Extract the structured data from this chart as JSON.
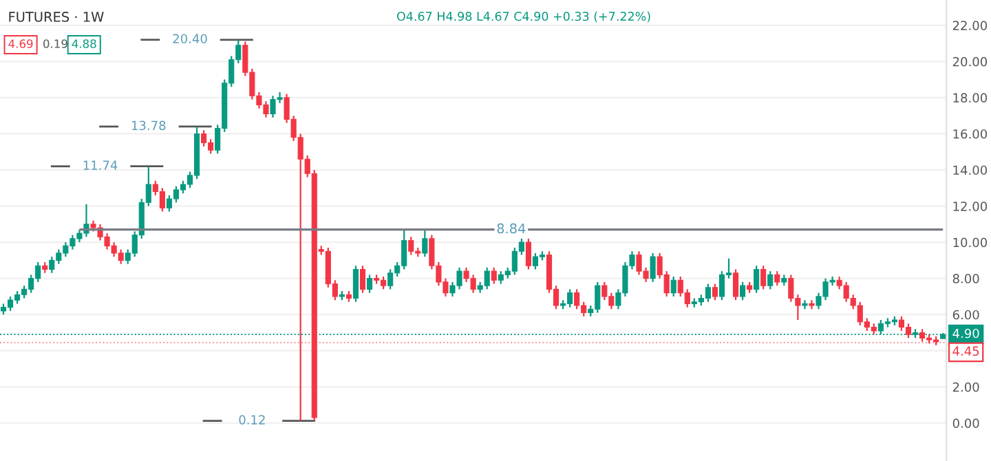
{
  "chart_data": {
    "type": "candlestick",
    "title": "FUTURES · 1W",
    "subtitle": "O4.67 H4.98 L4.67 C4.90 +0.33 (+7.22%)",
    "annotations": [
      "4.69",
      "0.19",
      "4.88",
      "20.40",
      "13.78",
      "11.74",
      "0.12",
      "8.84"
    ],
    "colors": [
      "#089981",
      "#089981",
      "#089981",
      "#089981",
      "#089981",
      "#089981",
      "#f23645",
      "#089981",
      "#089981",
      "#089981",
      "#089981",
      "#089981",
      "#089981",
      "#f23645",
      "#f23645",
      "#f23645",
      "#f23645",
      "#f23645",
      "#089981",
      "#089981",
      "#089981",
      "#089981",
      "#f23645",
      "#f23645",
      "#089981",
      "#089981",
      "#089981",
      "#089981",
      "#089981",
      "#f23645",
      "#f23645",
      "#089981",
      "#089981",
      "#089981",
      "#089981",
      "#f23645",
      "#f23645",
      "#f23645",
      "#f23645",
      "#089981",
      "#089981",
      "#f23645",
      "#f23645",
      "#f23645",
      "#f23645",
      "#f23645",
      "#f23645",
      "#f23645",
      "#f23645",
      "#089981",
      "#f23645",
      "#089981",
      "#f23645",
      "#089981",
      "#f23645",
      "#f23645",
      "#089981",
      "#089981",
      "#089981",
      "#f23645",
      "#f23645",
      "#089981",
      "#f23645",
      "#f23645",
      "#f23645",
      "#089981",
      "#089981",
      "#f23645",
      "#f23645",
      "#089981",
      "#089981",
      "#f23645",
      "#089981",
      "#089981",
      "#089981",
      "#089981",
      "#f23645",
      "#089981",
      "#089981",
      "#f23645",
      "#f23645",
      "#089981",
      "#089981",
      "#f23645",
      "#f23645",
      "#089981",
      "#089981",
      "#f23645",
      "#f23645",
      "#089981",
      "#089981",
      "#089981",
      "#f23645",
      "#f23645",
      "#089981",
      "#f23645",
      "#f23645",
      "#089981",
      "#f23645",
      "#f23645",
      "#089981",
      "#089981",
      "#089981",
      "#f23645",
      "#089981",
      "#089981",
      "#f23645",
      "#089981",
      "#f23645",
      "#089981",
      "#f23645",
      "#089981",
      "#f23645",
      "#089981",
      "#f23645",
      "#f23645",
      "#089981",
      "#f23645",
      "#089981",
      "#089981",
      "#089981",
      "#f23645",
      "#f23645",
      "#f23645",
      "#f23645",
      "#f23645",
      "#f23645",
      "#089981",
      "#089981",
      "#089981",
      "#f23645",
      "#f23645",
      "#089981",
      "#f23645",
      "#f23645",
      "#f23645",
      "#089981"
    ],
    "categories": [
      null,
      null,
      null,
      null,
      null,
      null,
      null,
      null,
      null,
      null,
      null,
      null,
      null,
      null,
      null,
      null,
      null,
      null,
      null,
      null,
      null,
      null,
      null,
      null,
      null,
      null,
      null,
      null,
      null,
      null,
      null,
      null,
      null,
      null,
      null,
      null,
      null,
      null,
      null,
      null,
      null,
      null,
      null,
      null,
      null,
      null,
      null,
      null,
      null,
      null,
      null,
      null,
      null,
      null,
      null,
      null,
      null,
      null,
      null,
      null,
      null,
      null,
      null,
      null,
      null,
      null,
      null,
      null,
      null,
      null,
      null,
      null,
      null,
      null,
      null,
      null,
      null,
      null,
      null,
      null,
      null,
      null,
      null,
      null,
      null,
      null,
      null,
      null,
      null,
      null,
      null,
      null,
      null,
      null,
      null,
      null,
      null,
      null,
      null,
      null,
      null,
      null,
      null,
      null,
      null,
      null,
      null,
      null,
      null,
      null,
      null,
      null,
      null,
      null,
      null,
      null,
      null,
      null,
      null,
      null,
      null,
      null,
      null,
      null,
      null,
      null,
      null,
      null,
      null,
      null,
      null,
      null,
      null,
      null,
      null,
      null,
      null
    ],
    "ohlc": [
      [
        6.2,
        6.6,
        6.0,
        6.4
      ],
      [
        6.4,
        7.0,
        6.2,
        6.8
      ],
      [
        6.8,
        7.3,
        6.6,
        7.1
      ],
      [
        7.1,
        7.6,
        6.9,
        7.4
      ],
      [
        7.4,
        8.2,
        7.2,
        8.0
      ],
      [
        8.0,
        8.9,
        7.8,
        8.7
      ],
      [
        8.7,
        8.9,
        8.3,
        8.5
      ],
      [
        8.5,
        9.2,
        8.3,
        9.0
      ],
      [
        9.0,
        9.6,
        8.8,
        9.4
      ],
      [
        9.4,
        10.0,
        9.2,
        9.8
      ],
      [
        9.8,
        10.4,
        9.6,
        10.2
      ],
      [
        10.2,
        10.7,
        10.0,
        10.5
      ],
      [
        10.5,
        12.1,
        10.3,
        11.0
      ],
      [
        11.0,
        11.2,
        10.6,
        10.8
      ],
      [
        10.8,
        11.0,
        10.1,
        10.3
      ],
      [
        10.3,
        10.5,
        9.6,
        9.8
      ],
      [
        9.8,
        10.0,
        9.2,
        9.4
      ],
      [
        9.4,
        9.6,
        8.8,
        9.0
      ],
      [
        9.0,
        9.6,
        8.8,
        9.4
      ],
      [
        9.4,
        10.6,
        9.2,
        10.4
      ],
      [
        10.4,
        12.4,
        10.2,
        12.2
      ],
      [
        12.2,
        14.2,
        12.0,
        13.2
      ],
      [
        13.2,
        13.4,
        12.6,
        12.8
      ],
      [
        12.8,
        13.0,
        11.7,
        11.9
      ],
      [
        11.9,
        12.6,
        11.7,
        12.4
      ],
      [
        12.4,
        13.1,
        12.2,
        12.9
      ],
      [
        12.9,
        13.4,
        12.7,
        13.2
      ],
      [
        13.2,
        13.9,
        13.0,
        13.7
      ],
      [
        13.7,
        16.4,
        13.5,
        16.0
      ],
      [
        16.0,
        16.2,
        15.3,
        15.5
      ],
      [
        15.5,
        15.7,
        14.9,
        15.1
      ],
      [
        15.1,
        16.5,
        14.9,
        16.3
      ],
      [
        16.3,
        19.0,
        16.1,
        18.8
      ],
      [
        18.8,
        20.3,
        18.6,
        20.1
      ],
      [
        20.1,
        21.2,
        19.9,
        20.9
      ],
      [
        20.9,
        21.1,
        19.2,
        19.4
      ],
      [
        19.4,
        19.6,
        17.9,
        18.1
      ],
      [
        18.1,
        18.3,
        17.4,
        17.6
      ],
      [
        17.6,
        17.8,
        16.9,
        17.1
      ],
      [
        17.1,
        18.1,
        16.9,
        17.9
      ],
      [
        17.9,
        18.3,
        17.7,
        18.0
      ],
      [
        18.0,
        18.2,
        16.6,
        16.8
      ],
      [
        16.8,
        17.0,
        15.6,
        15.8
      ],
      [
        15.8,
        16.0,
        0.12,
        14.6
      ],
      [
        14.6,
        14.8,
        13.6,
        13.8
      ],
      [
        13.8,
        14.0,
        0.12,
        0.3
      ],
      [
        9.6,
        9.8,
        9.3,
        9.5
      ],
      [
        9.5,
        9.7,
        7.5,
        7.7
      ],
      [
        7.7,
        7.9,
        6.8,
        7.0
      ],
      [
        7.0,
        7.3,
        6.8,
        7.1
      ],
      [
        7.1,
        7.3,
        6.7,
        6.9
      ],
      [
        6.9,
        8.7,
        6.7,
        8.5
      ],
      [
        8.5,
        8.7,
        7.2,
        7.4
      ],
      [
        7.4,
        8.2,
        7.2,
        8.0
      ],
      [
        8.0,
        8.2,
        7.7,
        7.9
      ],
      [
        7.9,
        8.1,
        7.4,
        7.6
      ],
      [
        7.6,
        8.5,
        7.4,
        8.3
      ],
      [
        8.3,
        8.9,
        8.1,
        8.7
      ],
      [
        8.7,
        10.7,
        8.5,
        10.1
      ],
      [
        10.1,
        10.3,
        9.3,
        9.5
      ],
      [
        9.5,
        9.7,
        9.2,
        9.4
      ],
      [
        9.4,
        10.7,
        9.2,
        10.2
      ],
      [
        10.2,
        10.4,
        8.5,
        8.7
      ],
      [
        8.7,
        8.9,
        7.6,
        7.8
      ],
      [
        7.8,
        8.0,
        7.0,
        7.2
      ],
      [
        7.2,
        7.8,
        7.0,
        7.6
      ],
      [
        7.6,
        8.6,
        7.4,
        8.4
      ],
      [
        8.4,
        8.6,
        7.8,
        8.0
      ],
      [
        8.0,
        8.2,
        7.2,
        7.4
      ],
      [
        7.4,
        7.8,
        7.2,
        7.6
      ],
      [
        7.6,
        8.6,
        7.4,
        8.4
      ],
      [
        8.4,
        8.6,
        7.7,
        7.9
      ],
      [
        7.9,
        8.4,
        7.7,
        8.2
      ],
      [
        8.2,
        8.6,
        8.0,
        8.4
      ],
      [
        8.4,
        9.7,
        8.2,
        9.5
      ],
      [
        9.5,
        10.2,
        9.3,
        10.0
      ],
      [
        10.0,
        10.2,
        8.5,
        8.7
      ],
      [
        8.7,
        9.4,
        8.5,
        9.2
      ],
      [
        9.2,
        9.5,
        9.0,
        9.3
      ],
      [
        9.3,
        9.5,
        7.2,
        7.4
      ],
      [
        7.4,
        7.6,
        6.3,
        6.5
      ],
      [
        6.5,
        6.8,
        6.3,
        6.6
      ],
      [
        6.6,
        7.4,
        6.4,
        7.2
      ],
      [
        7.2,
        7.4,
        6.3,
        6.5
      ],
      [
        6.5,
        6.7,
        5.9,
        6.1
      ],
      [
        6.1,
        6.5,
        5.9,
        6.3
      ],
      [
        6.3,
        7.8,
        6.1,
        7.6
      ],
      [
        7.6,
        7.8,
        6.8,
        7.0
      ],
      [
        7.0,
        7.2,
        6.3,
        6.5
      ],
      [
        6.5,
        7.4,
        6.3,
        7.2
      ],
      [
        7.2,
        8.9,
        7.0,
        8.7
      ],
      [
        8.7,
        9.5,
        8.5,
        9.3
      ],
      [
        9.3,
        9.5,
        8.2,
        8.4
      ],
      [
        8.4,
        8.6,
        7.8,
        8.0
      ],
      [
        8.0,
        9.4,
        7.8,
        9.2
      ],
      [
        9.2,
        9.4,
        8.0,
        8.2
      ],
      [
        8.2,
        8.4,
        7.0,
        7.2
      ],
      [
        7.2,
        8.1,
        7.0,
        7.9
      ],
      [
        7.9,
        8.1,
        7.0,
        7.2
      ],
      [
        7.2,
        7.4,
        6.4,
        6.6
      ],
      [
        6.6,
        6.9,
        6.4,
        6.7
      ],
      [
        6.7,
        7.1,
        6.5,
        6.9
      ],
      [
        6.9,
        7.7,
        6.7,
        7.5
      ],
      [
        7.5,
        7.7,
        6.8,
        7.0
      ],
      [
        7.0,
        8.4,
        6.8,
        8.2
      ],
      [
        8.2,
        9.1,
        8.0,
        8.3
      ],
      [
        8.3,
        8.5,
        6.8,
        7.0
      ],
      [
        7.0,
        7.8,
        6.8,
        7.6
      ],
      [
        7.6,
        7.8,
        7.2,
        7.4
      ],
      [
        7.4,
        8.7,
        7.2,
        8.5
      ],
      [
        8.5,
        8.7,
        7.4,
        7.6
      ],
      [
        7.6,
        8.4,
        7.4,
        8.2
      ],
      [
        8.2,
        8.4,
        7.6,
        7.8
      ],
      [
        7.8,
        8.2,
        7.6,
        8.0
      ],
      [
        8.0,
        8.2,
        6.7,
        6.9
      ],
      [
        6.9,
        7.1,
        5.7,
        6.5
      ],
      [
        6.5,
        6.8,
        6.3,
        6.6
      ],
      [
        6.6,
        6.8,
        6.3,
        6.5
      ],
      [
        6.5,
        7.2,
        6.3,
        7.0
      ],
      [
        7.0,
        8.0,
        6.8,
        7.8
      ],
      [
        7.8,
        8.1,
        7.6,
        7.9
      ],
      [
        7.9,
        8.1,
        7.4,
        7.6
      ],
      [
        7.6,
        7.8,
        6.7,
        6.9
      ],
      [
        6.9,
        7.1,
        6.3,
        6.5
      ],
      [
        6.5,
        6.7,
        5.4,
        5.6
      ],
      [
        5.6,
        5.8,
        5.1,
        5.3
      ],
      [
        5.3,
        5.5,
        4.9,
        5.1
      ],
      [
        5.1,
        5.7,
        4.9,
        5.5
      ],
      [
        5.5,
        5.8,
        5.3,
        5.6
      ],
      [
        5.6,
        5.9,
        5.4,
        5.7
      ],
      [
        5.7,
        5.9,
        5.1,
        5.3
      ],
      [
        5.3,
        5.5,
        4.7,
        4.9
      ],
      [
        4.9,
        5.2,
        4.7,
        5.0
      ],
      [
        5.0,
        5.2,
        4.5,
        4.7
      ],
      [
        4.7,
        4.9,
        4.4,
        4.6
      ],
      [
        4.6,
        4.8,
        4.3,
        4.5
      ],
      [
        4.67,
        4.98,
        4.67,
        4.9
      ]
    ],
    "ylim": [
      -2.1,
      23.4
    ],
    "yticks": [
      {
        "value": 0,
        "label": "0.00"
      },
      {
        "value": 2,
        "label": "2.00"
      },
      {
        "value": 4,
        "label": null
      },
      {
        "value": 6,
        "label": "6.00"
      },
      {
        "value": 8,
        "label": "8.00"
      },
      {
        "value": 10,
        "label": "10.00"
      },
      {
        "value": 12,
        "label": "12.00"
      },
      {
        "value": 14,
        "label": "14.00"
      },
      {
        "value": 16,
        "label": "16.00"
      },
      {
        "value": 18,
        "label": "18.00"
      },
      {
        "value": 20,
        "label": "20.00"
      },
      {
        "value": 22,
        "label": "22.00"
      }
    ],
    "ref_lines": [
      {
        "axis": "y",
        "value": 10.7,
        "color": "#787b86",
        "line_style": "solid"
      },
      {
        "axis": "y",
        "value": 4.9,
        "label": "4.90",
        "color": "#089981",
        "line_style": "dotted"
      },
      {
        "axis": "y",
        "value": 4.45,
        "label": "4.45",
        "color": "#f23645",
        "line_style": "dotted"
      }
    ],
    "grid": "y"
  }
}
